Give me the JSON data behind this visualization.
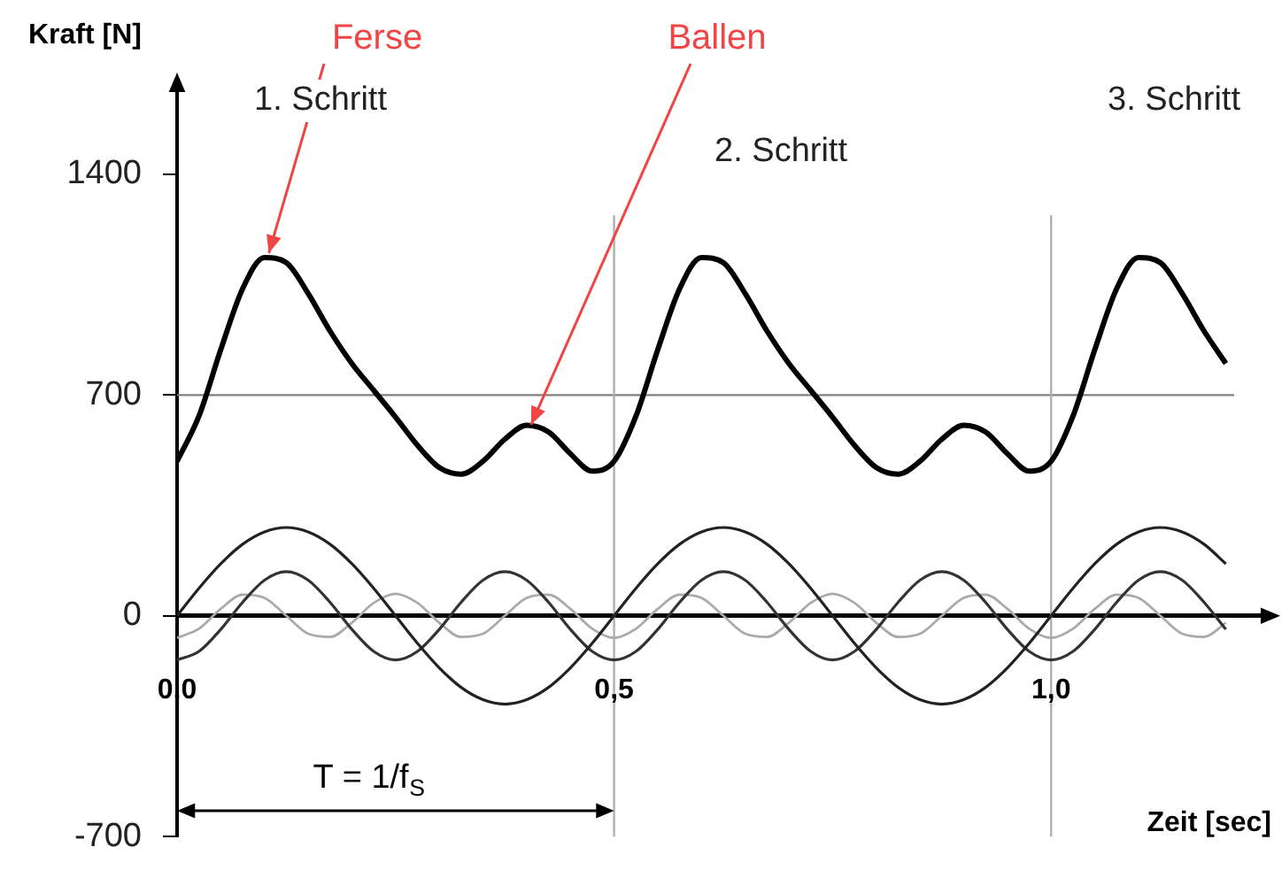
{
  "chart_data": {
    "type": "line",
    "xlabel": "Zeit [sec]",
    "ylabel": "Kraft [N]",
    "x": [
      0,
      0.025,
      0.05,
      0.075,
      0.1,
      0.125,
      0.15,
      0.175,
      0.2,
      0.225,
      0.25,
      0.275,
      0.3,
      0.325,
      0.35,
      0.375,
      0.4,
      0.425,
      0.45,
      0.475,
      0.5,
      0.525,
      0.55,
      0.575,
      0.6,
      0.625,
      0.65,
      0.675,
      0.7,
      0.725,
      0.75,
      0.775,
      0.8,
      0.825,
      0.85,
      0.875,
      0.9,
      0.925,
      0.95,
      0.975,
      1,
      1.025,
      1.05,
      1.075,
      1.1,
      1.125,
      1.15,
      1.175,
      1.2
    ],
    "series": [
      {
        "color": "#000000",
        "values": [
          490,
          633,
          844,
          1037,
          1136,
          1120,
          1022,
          903,
          800,
          715,
          630,
          541,
          470,
          449,
          490,
          560,
          604,
          583,
          514,
          459,
          490,
          633,
          844,
          1037,
          1136,
          1120,
          1022,
          903,
          800,
          715,
          630,
          541,
          470,
          449,
          490,
          560,
          604,
          583,
          514,
          459,
          490,
          633,
          844,
          1037,
          1136,
          1120,
          1022,
          903,
          800
        ]
      },
      {
        "color": "#222222",
        "values": [
          0,
          87,
          165,
          227,
          266,
          280,
          266,
          227,
          165,
          87,
          0,
          -87,
          -165,
          -227,
          -266,
          -280,
          -266,
          -227,
          -165,
          -87,
          0,
          87,
          165,
          227,
          266,
          280,
          266,
          227,
          165,
          87,
          0,
          -87,
          -165,
          -227,
          -266,
          -280,
          -266,
          -227,
          -165,
          -87,
          0,
          87,
          165,
          227,
          266,
          280,
          266,
          227,
          165
        ]
      },
      {
        "color": "#333333",
        "values": [
          -140,
          -113,
          -43,
          43,
          113,
          140,
          113,
          43,
          -43,
          -113,
          -140,
          -113,
          -43,
          43,
          113,
          140,
          113,
          43,
          -43,
          -113,
          -140,
          -113,
          -43,
          43,
          113,
          140,
          113,
          43,
          -43,
          -113,
          -140,
          -113,
          -43,
          43,
          113,
          140,
          113,
          43,
          -43,
          -113,
          -140,
          -113,
          -43,
          43,
          113,
          140,
          113,
          43,
          -43
        ]
      },
      {
        "color": "#aaaaaa",
        "values": [
          -70,
          -41,
          22,
          67,
          57,
          0,
          -57,
          -67,
          -22,
          41,
          70,
          41,
          -22,
          -67,
          -57,
          0,
          57,
          67,
          22,
          -41,
          -70,
          -41,
          22,
          67,
          57,
          0,
          -57,
          -67,
          -22,
          41,
          70,
          41,
          -22,
          -67,
          -57,
          0,
          57,
          67,
          22,
          -41,
          -70,
          -41,
          22,
          67,
          57,
          0,
          -57,
          -67,
          -22
        ]
      }
    ],
    "xlim": [
      0,
      1.25
    ],
    "xticks": [
      {
        "value": 0,
        "label": "0,0"
      },
      {
        "value": 0.5,
        "label": "0,5"
      },
      {
        "value": 1,
        "label": "1,0"
      }
    ],
    "ylim": [
      -700,
      1700
    ],
    "yticks": [
      1400,
      700,
      0,
      -700
    ],
    "grid": false,
    "legend": false,
    "marker": "none",
    "line_style": "solid",
    "ref_lines": [
      {
        "axis": "y",
        "value": 700,
        "color": "#808080"
      },
      {
        "axis": "x",
        "value": 0.5,
        "color": "#b0b0b0"
      },
      {
        "axis": "x",
        "value": 1,
        "color": "#b0b0b0"
      }
    ],
    "annotations": [
      {
        "text": "Ferse",
        "x": 0.105,
        "y": 1150
      },
      {
        "text": "Ballen",
        "x": 0.405,
        "y": 606
      },
      "1. Schritt",
      "2. Schritt",
      "3. Schritt",
      "T = 1/f$_{S}$"
    ]
  }
}
